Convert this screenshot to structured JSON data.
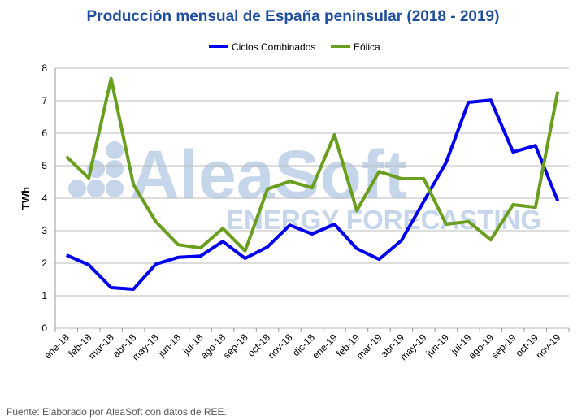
{
  "chart_data": {
    "type": "line",
    "title": "Producción mensual de España peninsular (2018 - 2019)",
    "ylabel": "TWh",
    "xlabel": "",
    "ylim": [
      0,
      8
    ],
    "yticks": [
      0,
      1,
      2,
      3,
      4,
      5,
      6,
      7,
      8
    ],
    "grid": true,
    "legend_position": "top",
    "categories": [
      "ene-18",
      "feb-18",
      "mar-18",
      "abr-18",
      "may-18",
      "jun-18",
      "jul-18",
      "ago-18",
      "sep-18",
      "oct-18",
      "nov-18",
      "dic-18",
      "ene-19",
      "feb-19",
      "mar-19",
      "abr-19",
      "may-19",
      "jun-19",
      "jul-19",
      "ago-19",
      "sep-19",
      "oct-19",
      "nov-19"
    ],
    "series": [
      {
        "name": "Ciclos Combinados",
        "color": "#0000ee",
        "values": [
          2.25,
          1.95,
          1.25,
          1.2,
          1.97,
          2.18,
          2.22,
          2.67,
          2.15,
          2.5,
          3.17,
          2.9,
          3.2,
          2.45,
          2.12,
          2.7,
          3.9,
          5.1,
          6.95,
          7.02,
          5.42,
          5.62,
          3.92
        ]
      },
      {
        "name": "Eólica",
        "color": "#6a9e1f",
        "values": [
          5.28,
          4.62,
          7.68,
          4.42,
          3.28,
          2.57,
          2.47,
          3.07,
          2.38,
          4.28,
          4.52,
          4.32,
          5.95,
          3.62,
          4.82,
          4.6,
          4.6,
          3.2,
          3.28,
          2.72,
          3.8,
          3.72,
          7.28
        ]
      }
    ]
  },
  "watermark": "AleaSoft ENERGY FORECASTING",
  "source": "Fuente: Elaborado por AleaSoft con datos de REE."
}
